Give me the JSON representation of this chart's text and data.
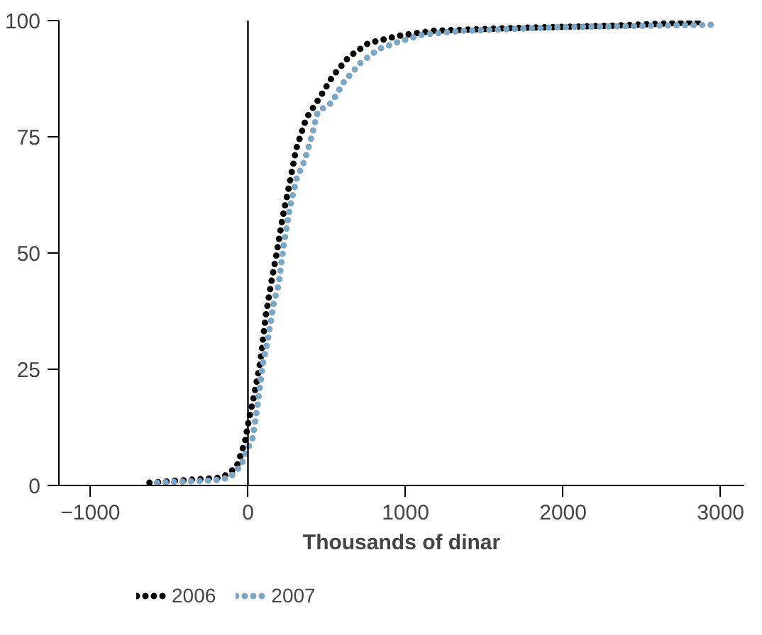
{
  "chart_data": {
    "type": "line",
    "xlabel": "Thousands of dinar",
    "xlim": [
      -1200,
      3150
    ],
    "ylim": [
      0,
      100
    ],
    "xticks": [
      -1000,
      0,
      1000,
      2000,
      3000
    ],
    "yticks": [
      0,
      25,
      50,
      75,
      100
    ],
    "grid": false,
    "legend": "bottom",
    "line_style": "dotted",
    "ref_lines": [
      {
        "axis": "x",
        "value": 0,
        "color": "#000000"
      }
    ],
    "series": [
      {
        "name": "2006",
        "color": "#000000",
        "x": [
          -625,
          -163,
          -73,
          -19,
          6,
          41,
          80,
          112,
          147,
          182,
          220,
          262,
          306,
          370,
          453,
          539,
          641,
          762,
          954,
          1177,
          1687,
          2325,
          2868
        ],
        "values": [
          0.6,
          1.7,
          3.9,
          9.4,
          14.2,
          19.7,
          26.9,
          36.3,
          43.5,
          49.9,
          57.6,
          64.6,
          72.4,
          79,
          83.3,
          88.1,
          92.2,
          95.1,
          96.7,
          97.8,
          98.4,
          98.9,
          99.7
        ]
      },
      {
        "name": "2007",
        "color": "#7ba7c7",
        "x": [
          -577,
          -211,
          -115,
          -41,
          -10,
          29,
          61,
          93,
          131,
          163,
          195,
          226,
          268,
          309,
          357,
          396,
          443,
          530,
          609,
          715,
          826,
          954,
          1113,
          1368,
          2006,
          2947
        ],
        "values": [
          0.6,
          1.1,
          1.7,
          4.4,
          7.4,
          10.1,
          17.2,
          25.8,
          32.2,
          39.2,
          43.3,
          51.5,
          60.1,
          66,
          69.7,
          74,
          80.4,
          82.3,
          86.8,
          90.9,
          93.8,
          95.4,
          97,
          97.8,
          98.6,
          99.1
        ]
      }
    ]
  }
}
